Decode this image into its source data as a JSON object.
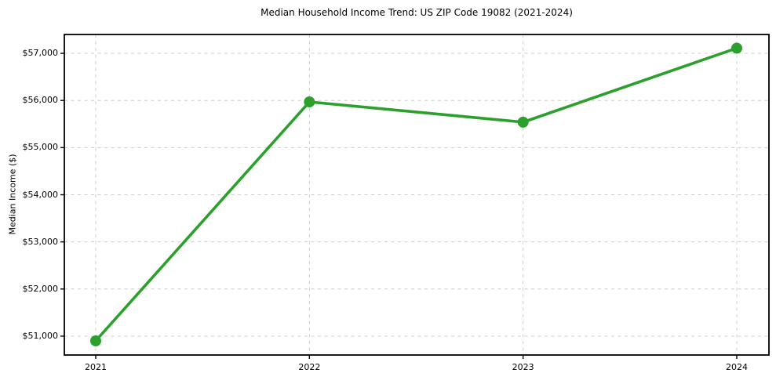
{
  "chart_data": {
    "type": "line",
    "title": "Median Household Income Trend: US ZIP Code 19082 (2021-2024)",
    "xlabel": "",
    "ylabel": "Median Income ($)",
    "categories": [
      "2021",
      "2022",
      "2023",
      "2024"
    ],
    "values": [
      50900,
      55970,
      55540,
      57110
    ],
    "ylim": [
      50600,
      57400
    ],
    "yticks": [
      51000,
      52000,
      53000,
      54000,
      55000,
      56000,
      57000
    ],
    "ytick_labels": [
      "$51,000",
      "$52,000",
      "$53,000",
      "$54,000",
      "$55,000",
      "$56,000",
      "$57,000"
    ],
    "grid": true,
    "grid_style": "dashed",
    "legend": "none",
    "marker": "circle",
    "line_color": "#2ca02c",
    "grid_color": "#cccccc",
    "axis_color": "#000000",
    "text_color": "#000000",
    "background_color": "#ffffff"
  }
}
